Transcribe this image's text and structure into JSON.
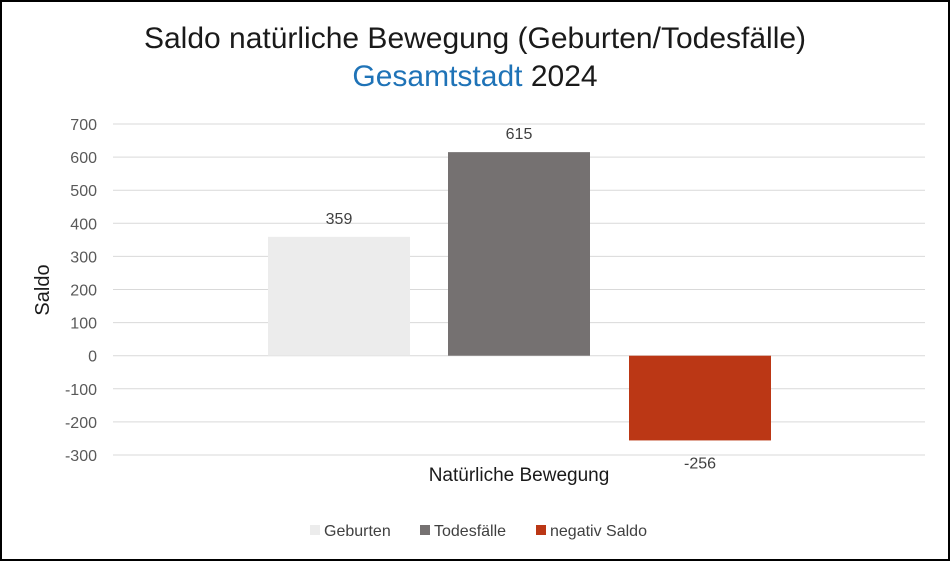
{
  "chart_data": {
    "type": "bar",
    "title": "Saldo natürliche Bewegung (Geburten/Todesfälle)",
    "subtitle_area": "Gesamtstadt",
    "subtitle_year": "2024",
    "xlabel": "Natürliche Bewegung",
    "ylabel": "Saldo",
    "ylim": [
      -300,
      700
    ],
    "yticks": [
      700,
      600,
      500,
      400,
      300,
      200,
      100,
      0,
      -100,
      -200,
      -300
    ],
    "ytick_labels": [
      "700",
      "600",
      "500",
      "400",
      "300",
      "200",
      "100",
      "0",
      "-100",
      "-200",
      "-300"
    ],
    "grid": true,
    "legend_position": "bottom",
    "series": [
      {
        "name": "Geburten",
        "value": 359,
        "label": "359",
        "color": "#ececec"
      },
      {
        "name": "Todesfälle",
        "value": 615,
        "label": "615",
        "color": "#757171"
      },
      {
        "name": "negativ Saldo",
        "value": -256,
        "label": "-256",
        "color": "#bb3715"
      }
    ]
  }
}
